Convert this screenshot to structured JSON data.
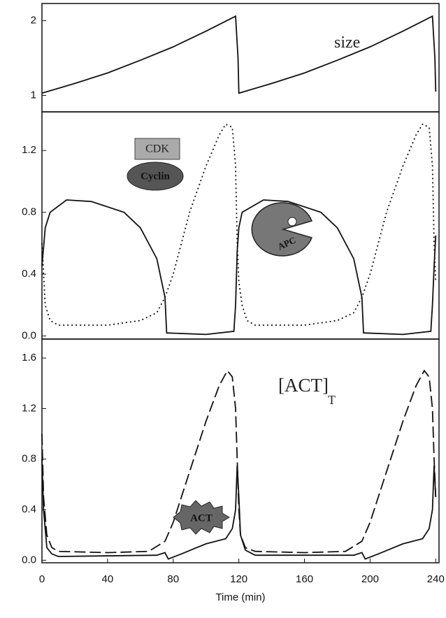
{
  "chart_data": [
    {
      "type": "line",
      "ylim": [
        0.78,
        2.23
      ],
      "yticks": [
        1,
        2
      ],
      "annotations": [
        "size"
      ],
      "series": [
        {
          "color": "#111111",
          "dash": "solid",
          "x": [
            0,
            20,
            40,
            60,
            80,
            100,
            118,
            119.5,
            120,
            140,
            160,
            180,
            200,
            220,
            238,
            239.5,
            240
          ],
          "values": [
            1.03,
            1.16,
            1.3,
            1.47,
            1.65,
            1.86,
            2.06,
            1.5,
            1.03,
            1.16,
            1.3,
            1.47,
            1.65,
            1.86,
            2.06,
            1.5,
            1.05
          ]
        }
      ]
    },
    {
      "type": "line",
      "ylim": [
        -0.02,
        1.45
      ],
      "yticks": [
        {
          "value": 0,
          "label": "0.0"
        },
        0.4,
        0.8,
        1.2
      ],
      "annotations": [
        "CDK",
        "Cyclin",
        "APC"
      ],
      "series": [
        {
          "color": "#111111",
          "dash": "solid",
          "x": [
            0,
            2,
            5,
            15,
            30,
            50,
            60,
            70,
            75,
            76,
            100,
            117,
            118,
            119,
            120,
            122,
            135,
            150,
            170,
            180,
            190,
            195,
            196,
            220,
            237,
            238,
            239,
            240
          ],
          "values": [
            0.45,
            0.7,
            0.8,
            0.88,
            0.87,
            0.8,
            0.7,
            0.5,
            0.25,
            0.02,
            0.01,
            0.03,
            0.2,
            0.55,
            0.7,
            0.8,
            0.88,
            0.87,
            0.8,
            0.7,
            0.5,
            0.25,
            0.02,
            0.01,
            0.03,
            0.2,
            0.45,
            0.65
          ]
        },
        {
          "color": "#111111",
          "dash": "dotted",
          "x": [
            0,
            2,
            5,
            10,
            40,
            60,
            70,
            75,
            80,
            85,
            90,
            100,
            108,
            112,
            116,
            118,
            119,
            120,
            122,
            125,
            130,
            160,
            180,
            190,
            195,
            200,
            205,
            210,
            220,
            228,
            232,
            236,
            238,
            239,
            240
          ],
          "values": [
            0.6,
            0.2,
            0.1,
            0.07,
            0.07,
            0.1,
            0.15,
            0.25,
            0.4,
            0.6,
            0.8,
            1.1,
            1.3,
            1.37,
            1.35,
            1.1,
            0.6,
            0.35,
            0.2,
            0.1,
            0.07,
            0.07,
            0.1,
            0.15,
            0.25,
            0.4,
            0.6,
            0.8,
            1.1,
            1.3,
            1.37,
            1.35,
            1.1,
            0.6,
            0.35
          ]
        }
      ]
    },
    {
      "type": "line",
      "ylim": [
        -0.02,
        1.75
      ],
      "yticks": [
        {
          "value": 0,
          "label": "0.0"
        },
        0.4,
        0.8,
        1.2,
        1.6
      ],
      "xlim": [
        0,
        242
      ],
      "xticks": [
        0,
        40,
        80,
        120,
        160,
        200,
        240
      ],
      "xlabel": "Time (min)",
      "annotations": [
        "[ACT]",
        "T",
        "ACT"
      ],
      "series": [
        {
          "color": "#111111",
          "dash": "dashed",
          "x": [
            0,
            1,
            3,
            6,
            10,
            40,
            65,
            75,
            80,
            90,
            100,
            108,
            113,
            116,
            118,
            119,
            120,
            121,
            124,
            130,
            160,
            185,
            195,
            200,
            210,
            220,
            228,
            233,
            236,
            238,
            239,
            240
          ],
          "values": [
            1.0,
            0.5,
            0.2,
            0.1,
            0.07,
            0.06,
            0.07,
            0.15,
            0.3,
            0.7,
            1.1,
            1.38,
            1.5,
            1.45,
            1.2,
            0.8,
            0.4,
            0.2,
            0.1,
            0.07,
            0.06,
            0.07,
            0.15,
            0.3,
            0.7,
            1.1,
            1.38,
            1.5,
            1.45,
            1.2,
            0.8,
            0.5
          ]
        },
        {
          "color": "#111111",
          "dash": "solid",
          "x": [
            0,
            1,
            3,
            6,
            10,
            70,
            75,
            77,
            85,
            100,
            112,
            116,
            118,
            119,
            120,
            121,
            124,
            130,
            190,
            195,
            197,
            205,
            220,
            232,
            236,
            238,
            239,
            240
          ],
          "values": [
            0.8,
            0.4,
            0.1,
            0.05,
            0.03,
            0.04,
            0.06,
            0.01,
            0.05,
            0.13,
            0.17,
            0.25,
            0.4,
            0.75,
            0.5,
            0.2,
            0.08,
            0.04,
            0.04,
            0.06,
            0.01,
            0.05,
            0.13,
            0.17,
            0.25,
            0.4,
            0.75,
            0.5
          ]
        }
      ]
    }
  ]
}
